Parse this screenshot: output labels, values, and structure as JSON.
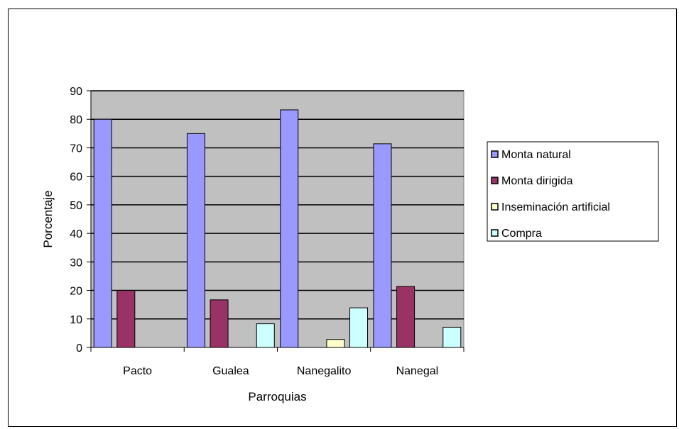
{
  "chart_data": {
    "type": "bar",
    "title": "",
    "xlabel": "Parroquias",
    "ylabel": "Porcentaje",
    "ylim": [
      0,
      90
    ],
    "yticks": [
      0,
      10,
      20,
      30,
      40,
      50,
      60,
      70,
      80,
      90
    ],
    "grid": true,
    "legend_position": "right",
    "categories": [
      "Pacto",
      "Gualea",
      "Nanegalito",
      "Nanegal"
    ],
    "series": [
      {
        "name": "Monta natural",
        "color": "#9999ff",
        "values": [
          80,
          75,
          83.3,
          71.4
        ]
      },
      {
        "name": "Monta dirigida",
        "color": "#993366",
        "values": [
          20,
          16.7,
          0,
          21.4
        ]
      },
      {
        "name": "Inseminación artificial",
        "color": "#ffffcc",
        "values": [
          0,
          0,
          2.8,
          0
        ]
      },
      {
        "name": "Compra",
        "color": "#ccffff",
        "values": [
          0,
          8.3,
          13.9,
          7.1
        ]
      }
    ],
    "plot_background": "#c0c0c0"
  }
}
